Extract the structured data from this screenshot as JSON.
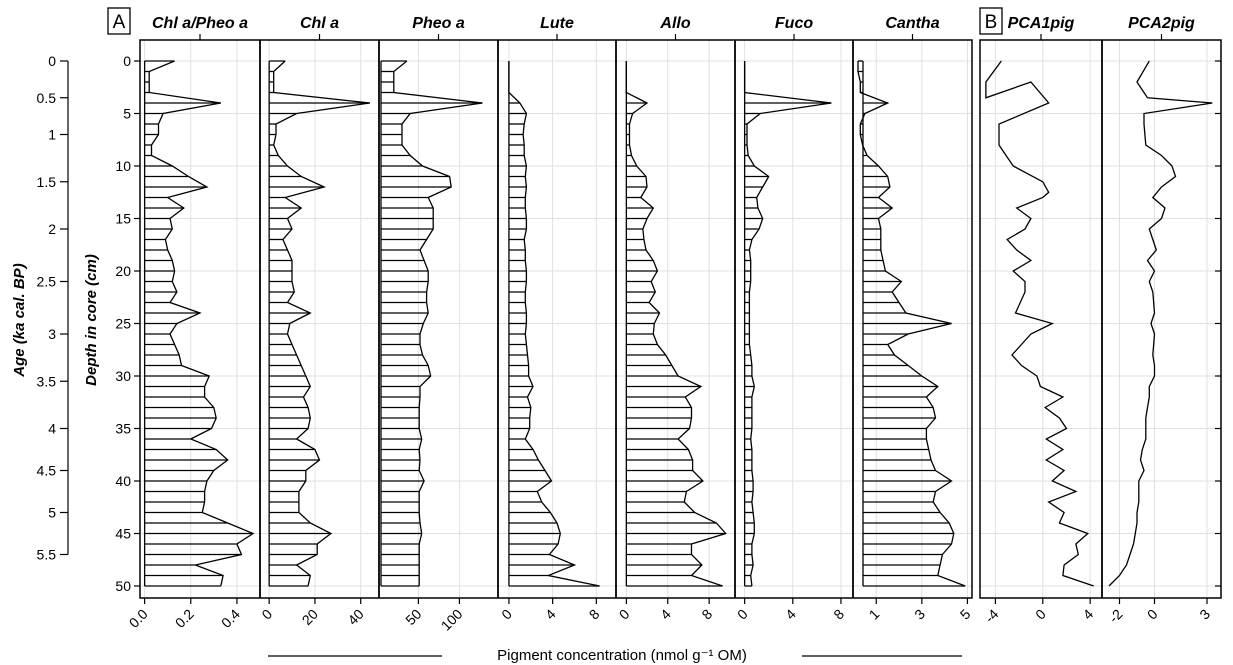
{
  "chart_data": [
    {
      "type": "area",
      "panel_label": "A",
      "ylabel_age": "Age (ka cal. BP)",
      "ylabel_depth": "Depth in core (cm)",
      "xlabel": "Pigment concentration (nmol g⁻¹ OM)",
      "depth_ticks": [
        "0",
        "5",
        "10",
        "15",
        "20",
        "25",
        "30",
        "35",
        "40",
        "45",
        "50"
      ],
      "age_ticks": [
        {
          "label": "0",
          "depth": 0
        },
        {
          "label": "0.5",
          "depth": 3.5
        },
        {
          "label": "1",
          "depth": 7
        },
        {
          "label": "1.5",
          "depth": 11.5
        },
        {
          "label": "2",
          "depth": 16
        },
        {
          "label": "2.5",
          "depth": 21
        },
        {
          "label": "3",
          "depth": 26
        },
        {
          "label": "3.5",
          "depth": 30.5
        },
        {
          "label": "4",
          "depth": 35
        },
        {
          "label": "4.5",
          "depth": 39
        },
        {
          "label": "5",
          "depth": 43
        },
        {
          "label": "5.5",
          "depth": 47
        }
      ],
      "depth": [
        0,
        1,
        2,
        3,
        4,
        5,
        6,
        7,
        8,
        9,
        10,
        11,
        12,
        13,
        14,
        15,
        16,
        17,
        18,
        19,
        20,
        21,
        22,
        23,
        24,
        25,
        26,
        27,
        28,
        29,
        30,
        31,
        32,
        33,
        34,
        35,
        36,
        37,
        38,
        39,
        40,
        41,
        42,
        43,
        44,
        45,
        46,
        47,
        48,
        49,
        50
      ],
      "series": [
        {
          "name": "Chl a/Pheo a",
          "tick_labels": [
            "0.0",
            "0.2",
            "0.4"
          ],
          "tick_values": [
            0,
            0.2,
            0.4
          ],
          "xlim": [
            -0.02,
            0.5
          ],
          "values": [
            0.13,
            0.02,
            0.02,
            0.02,
            0.33,
            0.08,
            0.06,
            0.06,
            0.03,
            0.03,
            0.12,
            0.19,
            0.27,
            0.1,
            0.17,
            0.11,
            0.12,
            0.09,
            0.1,
            0.12,
            0.13,
            0.12,
            0.14,
            0.11,
            0.24,
            0.14,
            0.11,
            0.13,
            0.15,
            0.16,
            0.28,
            0.26,
            0.26,
            0.3,
            0.31,
            0.29,
            0.2,
            0.31,
            0.36,
            0.3,
            0.27,
            0.26,
            0.26,
            0.25,
            0.36,
            0.47,
            0.4,
            0.42,
            0.22,
            0.34,
            0.33
          ]
        },
        {
          "name": "Chl a",
          "tick_labels": [
            "0",
            "20",
            "40"
          ],
          "tick_values": [
            0,
            20,
            40
          ],
          "xlim": [
            -4,
            48
          ],
          "values": [
            7,
            2,
            2,
            2,
            44,
            12,
            3,
            3,
            2,
            4,
            8,
            14,
            24,
            7,
            14,
            8,
            10,
            6,
            8,
            10,
            10,
            10,
            11,
            8,
            18,
            9,
            8,
            10,
            12,
            14,
            16,
            18,
            15,
            17,
            18,
            17,
            12,
            20,
            22,
            16,
            16,
            13,
            13,
            13,
            18,
            27,
            21,
            21,
            12,
            18,
            17
          ]
        },
        {
          "name": "Pheo a",
          "tick_labels": [
            "50",
            "100"
          ],
          "tick_values": [
            50,
            100
          ],
          "xlim": [
            2,
            147
          ],
          "values": [
            36,
            20,
            20,
            20,
            128,
            40,
            30,
            30,
            30,
            40,
            55,
            88,
            90,
            62,
            68,
            68,
            68,
            60,
            52,
            57,
            62,
            62,
            60,
            60,
            62,
            56,
            52,
            52,
            55,
            62,
            65,
            52,
            52,
            51,
            51,
            51,
            54,
            51,
            52,
            51,
            57,
            51,
            51,
            51,
            52,
            54,
            51,
            51,
            51,
            51,
            51
          ]
        },
        {
          "name": "Lute",
          "tick_labels": [
            "0",
            "4",
            "8"
          ],
          "tick_values": [
            0,
            4,
            8
          ],
          "xlim": [
            -1,
            9.8
          ],
          "values": [
            0,
            0,
            0,
            0,
            1,
            1.6,
            1.4,
            1.3,
            1.4,
            1.4,
            1.6,
            1.5,
            1.6,
            1.5,
            1.5,
            1.6,
            1.6,
            1.4,
            1.5,
            1.5,
            1.6,
            1.6,
            1.5,
            1.5,
            1.6,
            1.6,
            1.5,
            1.6,
            1.7,
            1.8,
            1.8,
            2.2,
            1.7,
            2.0,
            1.9,
            1.9,
            1.5,
            2.2,
            2.7,
            3.3,
            3.9,
            2.6,
            3.0,
            3.8,
            4.4,
            4.7,
            4.5,
            3.7,
            6.0,
            3.6,
            8.3
          ]
        },
        {
          "name": "Allo",
          "tick_labels": [
            "0",
            "4",
            "8"
          ],
          "tick_values": [
            0,
            4,
            8
          ],
          "xlim": [
            -1,
            10.5
          ],
          "values": [
            0,
            0,
            0,
            0,
            2,
            0.6,
            0.3,
            0.3,
            0.3,
            0.5,
            1,
            1.9,
            2,
            1.4,
            2.6,
            2.0,
            1.6,
            1.7,
            1.9,
            2.6,
            3.0,
            2.4,
            2.8,
            2.2,
            3.2,
            2.7,
            2.6,
            3.0,
            3.8,
            4.4,
            5.0,
            7.2,
            5.7,
            6.3,
            6.3,
            6.1,
            5.0,
            6.0,
            6.4,
            6.4,
            7.4,
            5.8,
            5.6,
            6.6,
            8.7,
            9.6,
            6.3,
            6.3,
            7.3,
            6.3,
            9.3
          ]
        },
        {
          "name": "Fuco",
          "tick_labels": [
            "0",
            "4",
            "8"
          ],
          "tick_values": [
            0,
            4,
            8
          ],
          "xlim": [
            -0.8,
            9
          ],
          "values": [
            0,
            0,
            0,
            0,
            7.2,
            1.3,
            0.2,
            0.2,
            0.2,
            0.3,
            0.8,
            2,
            1.5,
            1,
            1.1,
            1.5,
            1.2,
            0.6,
            0.4,
            0.5,
            0.5,
            0.5,
            0.4,
            0.4,
            0.4,
            0.4,
            0.4,
            0.4,
            0.5,
            0.6,
            0.6,
            0.8,
            0.6,
            0.6,
            0.6,
            0.6,
            0.5,
            0.6,
            0.6,
            0.6,
            0.7,
            0.7,
            0.6,
            0.7,
            0.8,
            0.8,
            0.6,
            0.6,
            0.7,
            0.5,
            0.6
          ]
        },
        {
          "name": "Cantha",
          "tick_labels": [
            "1",
            "3",
            "5"
          ],
          "tick_values": [
            1,
            3,
            5
          ],
          "xlim": [
            -0.02,
            5.2
          ],
          "values": [
            0.2,
            0.2,
            0.3,
            0.3,
            1.5,
            0.5,
            0.3,
            0.3,
            0.4,
            0.6,
            1.1,
            1.5,
            1.6,
            1.1,
            1.7,
            1.1,
            1.2,
            1.2,
            1.2,
            1.3,
            1.4,
            2.1,
            1.7,
            2.0,
            2.3,
            4.3,
            2.4,
            1.5,
            1.8,
            2.4,
            3.0,
            3.7,
            3.2,
            3.5,
            3.6,
            3.2,
            3.2,
            3.3,
            3.4,
            3.6,
            4.3,
            3.6,
            3.5,
            3.8,
            4.2,
            4.4,
            4.3,
            3.9,
            3.8,
            3.7,
            4.9
          ]
        }
      ]
    },
    {
      "type": "line",
      "panel_label": "B",
      "series": [
        {
          "name": "PCA1pig",
          "tick_labels": [
            "-4",
            "0",
            "4"
          ],
          "tick_values": [
            -4,
            0,
            4
          ],
          "xlim": [
            -5.3,
            5
          ],
          "points": [
            [
              -3.5,
              0
            ],
            [
              -4.8,
              2
            ],
            [
              -4.8,
              3.5
            ],
            [
              -1,
              2
            ],
            [
              0.5,
              4
            ],
            [
              -3.7,
              6
            ],
            [
              -3.7,
              8
            ],
            [
              -2.5,
              10
            ],
            [
              0,
              11.5
            ],
            [
              0.5,
              12.5
            ],
            [
              0,
              13
            ],
            [
              -2.2,
              14
            ],
            [
              -1,
              15
            ],
            [
              -1.5,
              16
            ],
            [
              -3,
              17
            ],
            [
              -2.2,
              18
            ],
            [
              -1,
              19
            ],
            [
              -2.5,
              20
            ],
            [
              -1.5,
              21
            ],
            [
              -1.5,
              22
            ],
            [
              -2.3,
              24
            ],
            [
              0.8,
              25
            ],
            [
              -1,
              26
            ],
            [
              -2.6,
              28
            ],
            [
              -1.8,
              29
            ],
            [
              -0.5,
              30
            ],
            [
              -0.2,
              31
            ],
            [
              1.7,
              32
            ],
            [
              0.2,
              33
            ],
            [
              1.4,
              34
            ],
            [
              2,
              35
            ],
            [
              0.3,
              36
            ],
            [
              1.7,
              37
            ],
            [
              0.3,
              38
            ],
            [
              1.8,
              39
            ],
            [
              0.8,
              40
            ],
            [
              2.8,
              41
            ],
            [
              0.5,
              42
            ],
            [
              1.8,
              43
            ],
            [
              1.4,
              44
            ],
            [
              3.8,
              45
            ],
            [
              2.8,
              46
            ],
            [
              3,
              47
            ],
            [
              1.8,
              48
            ],
            [
              1.7,
              49
            ],
            [
              4.3,
              50
            ]
          ]
        },
        {
          "name": "PCA2pig",
          "tick_labels": [
            "-2",
            "0",
            "3"
          ],
          "tick_values": [
            -2,
            0,
            3
          ],
          "xlim": [
            -3,
            3.8
          ],
          "points": [
            [
              -0.3,
              0
            ],
            [
              -1,
              2
            ],
            [
              -0.4,
              3.5
            ],
            [
              3.3,
              4
            ],
            [
              -0.6,
              5
            ],
            [
              -0.6,
              6
            ],
            [
              -0.5,
              8
            ],
            [
              0.4,
              9
            ],
            [
              1,
              10
            ],
            [
              1.2,
              11
            ],
            [
              0.4,
              12
            ],
            [
              -0.1,
              13
            ],
            [
              0.6,
              14
            ],
            [
              0.4,
              15
            ],
            [
              -0.3,
              16
            ],
            [
              -0.1,
              17
            ],
            [
              0.1,
              18
            ],
            [
              -0.4,
              19
            ],
            [
              0,
              20
            ],
            [
              -0.3,
              21
            ],
            [
              -0.1,
              22
            ],
            [
              0,
              24
            ],
            [
              -0.2,
              25
            ],
            [
              0,
              26
            ],
            [
              -0.1,
              28
            ],
            [
              0,
              29
            ],
            [
              0,
              30
            ],
            [
              -0.3,
              31
            ],
            [
              -0.3,
              32
            ],
            [
              -0.4,
              33
            ],
            [
              -0.5,
              34
            ],
            [
              -0.5,
              35
            ],
            [
              -0.5,
              36
            ],
            [
              -0.7,
              37
            ],
            [
              -0.8,
              38
            ],
            [
              -0.6,
              39
            ],
            [
              -0.9,
              40
            ],
            [
              -0.9,
              41
            ],
            [
              -0.9,
              42
            ],
            [
              -1,
              43
            ],
            [
              -1,
              44
            ],
            [
              -1.1,
              45
            ],
            [
              -1.2,
              46
            ],
            [
              -1.4,
              47
            ],
            [
              -1.6,
              48
            ],
            [
              -2,
              49
            ],
            [
              -2.6,
              50
            ]
          ]
        }
      ]
    }
  ]
}
